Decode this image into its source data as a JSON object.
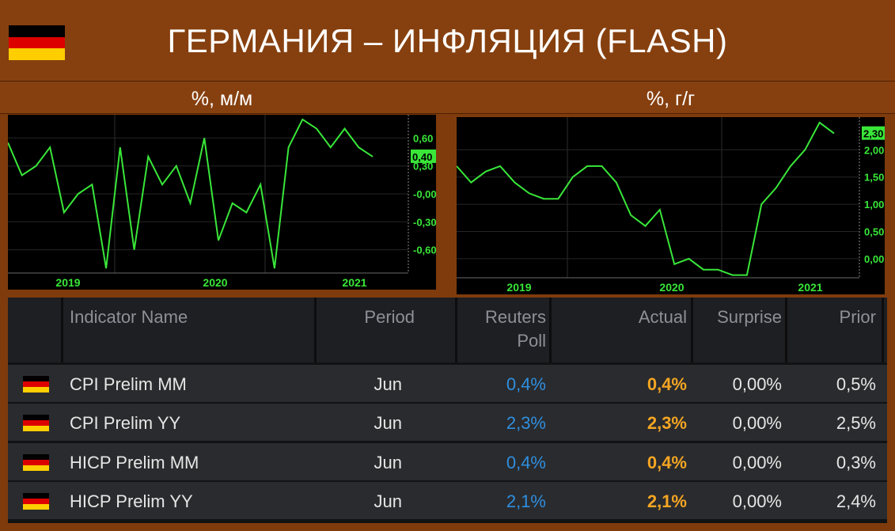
{
  "header": {
    "title": "ГЕРМАНИЯ – ИНФЛЯЦИЯ (FLASH)",
    "flag_colors": [
      "#000000",
      "#dd0000",
      "#ffce00"
    ]
  },
  "chart_data": [
    {
      "type": "line",
      "title": "%, м/м",
      "x_tick_labels": [
        "2019",
        "2020",
        "2021"
      ],
      "y_tick_labels": [
        "0,60",
        "0,30",
        "-0,00",
        "-0,30",
        "-0,60"
      ],
      "ylim": [
        -0.85,
        0.85
      ],
      "current_value_label": "0,40",
      "line_color": "#39e639",
      "grid": true,
      "points": [
        {
          "x": 0,
          "y": 0.55
        },
        {
          "x": 1,
          "y": 0.2
        },
        {
          "x": 2,
          "y": 0.3
        },
        {
          "x": 3,
          "y": 0.5
        },
        {
          "x": 4,
          "y": -0.2
        },
        {
          "x": 5,
          "y": 0.0
        },
        {
          "x": 6,
          "y": 0.1
        },
        {
          "x": 7,
          "y": -0.8
        },
        {
          "x": 8,
          "y": 0.5
        },
        {
          "x": 9,
          "y": -0.6
        },
        {
          "x": 10,
          "y": 0.4
        },
        {
          "x": 11,
          "y": 0.1
        },
        {
          "x": 12,
          "y": 0.3
        },
        {
          "x": 13,
          "y": -0.1
        },
        {
          "x": 14,
          "y": 0.6
        },
        {
          "x": 15,
          "y": -0.5
        },
        {
          "x": 16,
          "y": -0.1
        },
        {
          "x": 17,
          "y": -0.2
        },
        {
          "x": 18,
          "y": 0.1
        },
        {
          "x": 19,
          "y": -0.8
        },
        {
          "x": 20,
          "y": 0.5
        },
        {
          "x": 21,
          "y": 0.8
        },
        {
          "x": 22,
          "y": 0.7
        },
        {
          "x": 23,
          "y": 0.5
        },
        {
          "x": 24,
          "y": 0.7
        },
        {
          "x": 25,
          "y": 0.5
        },
        {
          "x": 26,
          "y": 0.4
        }
      ]
    },
    {
      "type": "line",
      "title": "%, г/г",
      "x_tick_labels": [
        "2019",
        "2020",
        "2021"
      ],
      "y_tick_labels": [
        "2,00",
        "1,50",
        "1,00",
        "0,50",
        "0,00"
      ],
      "ylim": [
        -0.35,
        2.6
      ],
      "current_value_label": "2,30",
      "line_color": "#39e639",
      "grid": true,
      "points": [
        {
          "x": 0,
          "y": 1.7
        },
        {
          "x": 1,
          "y": 1.4
        },
        {
          "x": 2,
          "y": 1.6
        },
        {
          "x": 3,
          "y": 1.7
        },
        {
          "x": 4,
          "y": 1.4
        },
        {
          "x": 5,
          "y": 1.2
        },
        {
          "x": 6,
          "y": 1.1
        },
        {
          "x": 7,
          "y": 1.1
        },
        {
          "x": 8,
          "y": 1.5
        },
        {
          "x": 9,
          "y": 1.7
        },
        {
          "x": 10,
          "y": 1.7
        },
        {
          "x": 11,
          "y": 1.4
        },
        {
          "x": 12,
          "y": 0.8
        },
        {
          "x": 13,
          "y": 0.6
        },
        {
          "x": 14,
          "y": 0.9
        },
        {
          "x": 15,
          "y": -0.1
        },
        {
          "x": 16,
          "y": 0.0
        },
        {
          "x": 17,
          "y": -0.2
        },
        {
          "x": 18,
          "y": -0.2
        },
        {
          "x": 19,
          "y": -0.3
        },
        {
          "x": 20,
          "y": -0.3
        },
        {
          "x": 21,
          "y": 1.0
        },
        {
          "x": 22,
          "y": 1.3
        },
        {
          "x": 23,
          "y": 1.7
        },
        {
          "x": 24,
          "y": 2.0
        },
        {
          "x": 25,
          "y": 2.5
        },
        {
          "x": 26,
          "y": 2.3
        }
      ]
    }
  ],
  "table": {
    "headers": {
      "name": "Indicator Name",
      "period": "Period",
      "poll_line1": "Reuters",
      "poll_line2": "Poll",
      "actual": "Actual",
      "surprise": "Surprise",
      "prior": "Prior"
    },
    "colors": {
      "poll": "#2f8fe0",
      "actual": "#f5a623"
    },
    "rows": [
      {
        "name": "CPI Prelim MM",
        "period": "Jun",
        "poll": "0,4%",
        "actual": "0,4%",
        "surprise": "0,00%",
        "prior": "0,5%"
      },
      {
        "name": "CPI Prelim YY",
        "period": "Jun",
        "poll": "2,3%",
        "actual": "2,3%",
        "surprise": "0,00%",
        "prior": "2,5%"
      },
      {
        "name": "HICP Prelim MM",
        "period": "Jun",
        "poll": "0,4%",
        "actual": "0,4%",
        "surprise": "0,00%",
        "prior": "0,3%"
      },
      {
        "name": "HICP Prelim YY",
        "period": "Jun",
        "poll": "2,1%",
        "actual": "2,1%",
        "surprise": "0,00%",
        "prior": "2,4%"
      }
    ]
  }
}
